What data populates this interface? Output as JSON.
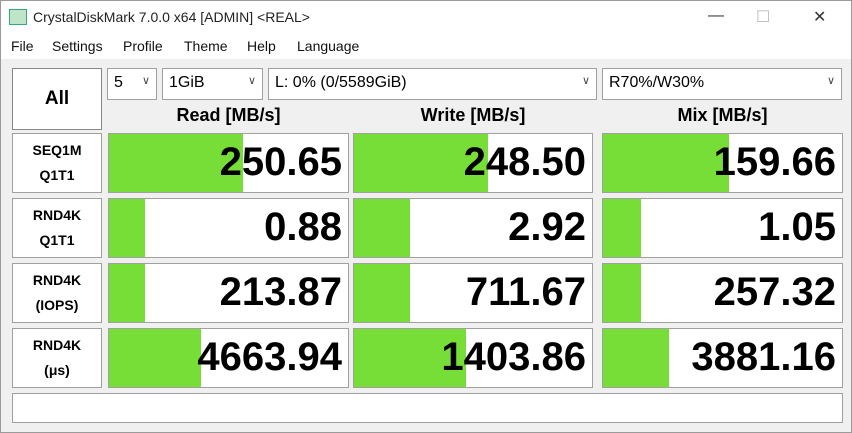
{
  "window": {
    "title": "CrystalDiskMark 7.0.0 x64 [ADMIN] <REAL>"
  },
  "menu": [
    "File",
    "Settings",
    "Profile",
    "Theme",
    "Help",
    "Language"
  ],
  "all_button": "All",
  "combos": [
    "5",
    "1GiB",
    "L: 0% (0/5589GiB)",
    "R70%/W30%"
  ],
  "headers": [
    "Read [MB/s]",
    "Write [MB/s]",
    "Mix [MB/s]"
  ],
  "rows": [
    {
      "label": [
        "SEQ1M",
        "Q1T1"
      ],
      "values": [
        "250.65",
        "248.50",
        "159.66"
      ]
    },
    {
      "label": [
        "RND4K",
        "Q1T1"
      ],
      "values": [
        "0.88",
        "2.92",
        "1.05"
      ]
    },
    {
      "label": [
        "RND4K",
        "(IOPS)"
      ],
      "values": [
        "213.87",
        "711.67",
        "257.32"
      ]
    },
    {
      "label": [
        "RND4K",
        "(μs)"
      ],
      "values": [
        "4663.94",
        "1403.86",
        "3881.16"
      ]
    }
  ]
}
